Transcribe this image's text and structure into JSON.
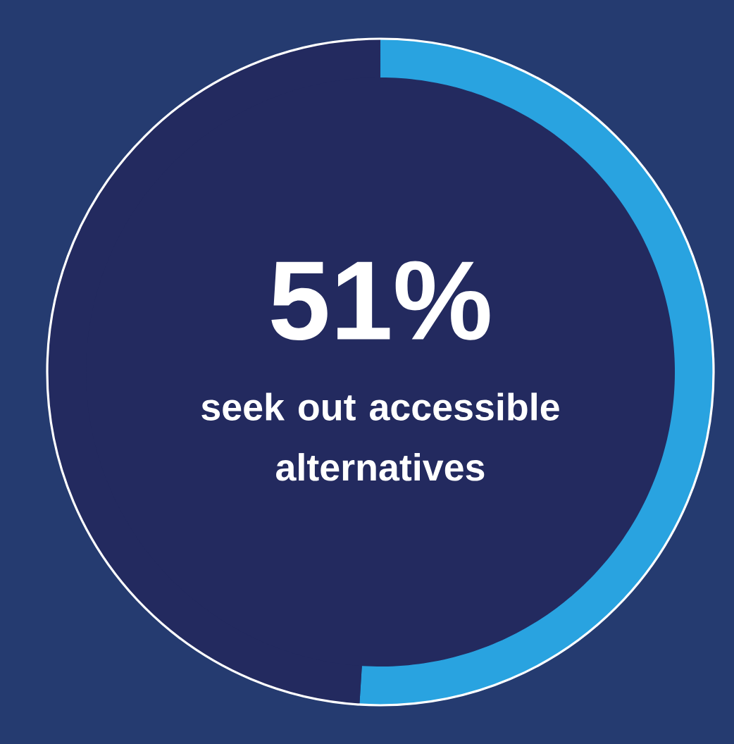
{
  "chart_data": {
    "type": "donut",
    "categories": [
      null,
      null
    ],
    "values": [
      51,
      49
    ],
    "colors": [
      "#29a3e0",
      "#232a5f"
    ],
    "value_labels": [
      "51%",
      null
    ],
    "annotations": [
      "seek out accessible alternatives"
    ]
  }
}
